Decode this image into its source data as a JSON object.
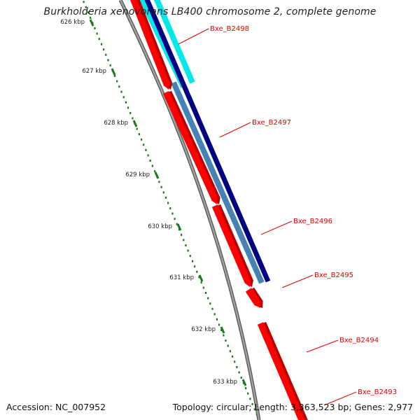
{
  "title": "Burkholderia xenovorans LB400 chromosome 2, complete genome",
  "footer": {
    "accession": "Accession: NC_007952",
    "summary": "Topology: circular; Length: 3,363,523 bp; Genes: 2,977"
  },
  "ticks": [
    {
      "label": "626 kbp",
      "kbp": 626
    },
    {
      "label": "627 kbp",
      "kbp": 627
    },
    {
      "label": "628 kbp",
      "kbp": 628
    },
    {
      "label": "629 kbp",
      "kbp": 629
    },
    {
      "label": "630 kbp",
      "kbp": 630
    },
    {
      "label": "631 kbp",
      "kbp": 631
    },
    {
      "label": "632 kbp",
      "kbp": 632
    },
    {
      "label": "633 kbp",
      "kbp": 633
    }
  ],
  "genes": [
    {
      "label": "Bxe_B2498"
    },
    {
      "label": "Bxe_B2497"
    },
    {
      "label": "Bxe_B2496"
    },
    {
      "label": "Bxe_B2495"
    },
    {
      "label": "Bxe_B2494"
    },
    {
      "label": "Bxe_B2493"
    }
  ],
  "colors": {
    "cds": "#ff0000",
    "cds_shadow": "#b80000",
    "navy": "#000080",
    "steel": "#4682b4",
    "cyan": "#00e8e8",
    "backbone": "#8a8a8a",
    "tick": "#1a7a1a",
    "label": "#e00000"
  }
}
